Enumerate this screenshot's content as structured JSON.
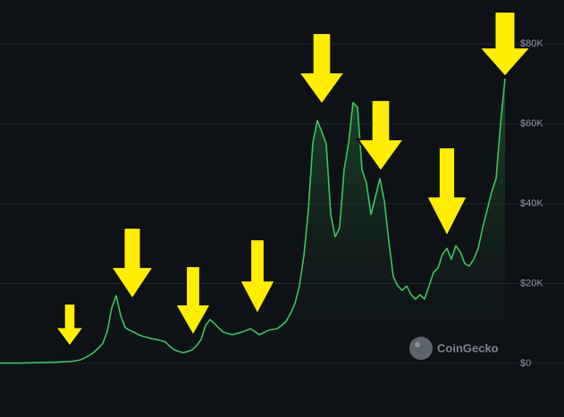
{
  "chart_data": {
    "type": "area",
    "color": "#3cc45a",
    "watermark": "CoinGecko",
    "ylim": [
      0,
      91000
    ],
    "yticks": [
      {
        "value": 0,
        "label": "$0"
      },
      {
        "value": 20000,
        "label": "$20K"
      },
      {
        "value": 40000,
        "label": "$40K"
      },
      {
        "value": 60000,
        "label": "$60K"
      },
      {
        "value": 80000,
        "label": "$80K"
      }
    ],
    "grid": true,
    "values": [
      100,
      100,
      100,
      100,
      100,
      100,
      150,
      150,
      200,
      200,
      250,
      300,
      300,
      350,
      400,
      450,
      500,
      700,
      900,
      1400,
      2000,
      2800,
      3800,
      5000,
      8000,
      13900,
      17000,
      12000,
      9000,
      8300,
      7800,
      7200,
      6800,
      6500,
      6200,
      6000,
      5700,
      5400,
      4300,
      3400,
      3000,
      2700,
      3000,
      3400,
      4500,
      6000,
      9500,
      11000,
      10000,
      8800,
      7800,
      7500,
      7200,
      7500,
      7800,
      8200,
      8700,
      8000,
      7200,
      7700,
      8300,
      8500,
      8700,
      9500,
      10500,
      12500,
      15000,
      19400,
      27000,
      38400,
      55200,
      60800,
      58000,
      55000,
      37300,
      31700,
      34000,
      48500,
      55200,
      65300,
      64100,
      48500,
      45100,
      37300,
      41700,
      46300,
      40700,
      30600,
      21700,
      19400,
      18300,
      19400,
      17200,
      16100,
      17200,
      16100,
      19400,
      22800,
      23900,
      27300,
      28800,
      26100,
      29500,
      27900,
      25000,
      24400,
      26100,
      28800,
      34000,
      38400,
      42900,
      46300,
      60000,
      71300
    ]
  }
}
